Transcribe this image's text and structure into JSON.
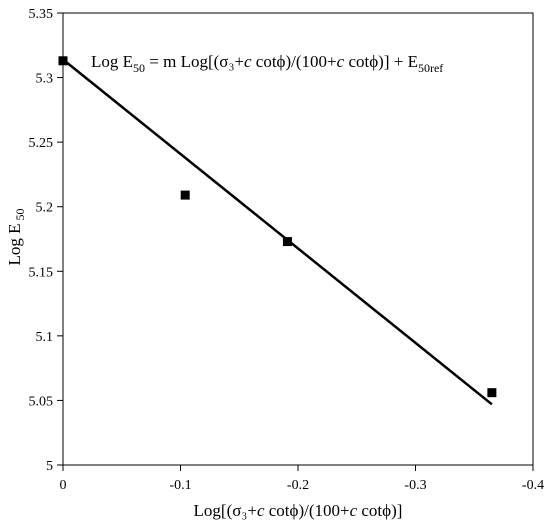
{
  "chart_data": {
    "type": "scatter",
    "title": "",
    "xlabel_parts": [
      "Log[(σ₃+",
      "c",
      " cotϕ)/(100+",
      "c",
      " cotϕ)]"
    ],
    "ylabel_parts": [
      "Log E",
      " 50"
    ],
    "annotation_parts": [
      "Log E",
      "50",
      " = m Log[(σ₃+",
      "c",
      " cotϕ)/(100+",
      "c",
      " cotϕ)] + E",
      "50ref"
    ],
    "xlim": [
      0,
      -0.4
    ],
    "ylim": [
      5,
      5.35
    ],
    "x_ticks": [
      0,
      -0.1,
      -0.2,
      -0.3,
      -0.4
    ],
    "x_tick_labels": [
      "0",
      "-0.1",
      "-0.2",
      "-0.3",
      "-0.4"
    ],
    "y_ticks": [
      5,
      5.05,
      5.1,
      5.15,
      5.2,
      5.25,
      5.3,
      5.35
    ],
    "y_tick_labels": [
      "5",
      "5.05",
      "5.1",
      "5.15",
      "5.2",
      "5.25",
      "5.3",
      "5.35"
    ],
    "grid": false,
    "series": [
      {
        "type": "scatter",
        "marker": "square",
        "color": "#000000",
        "x": [
          0,
          -0.104,
          -0.191,
          -0.365
        ],
        "y": [
          5.313,
          5.209,
          5.173,
          5.056
        ]
      },
      {
        "type": "line",
        "color": "#000000",
        "x": [
          0,
          -0.365
        ],
        "y": [
          5.314,
          5.047
        ]
      }
    ]
  }
}
